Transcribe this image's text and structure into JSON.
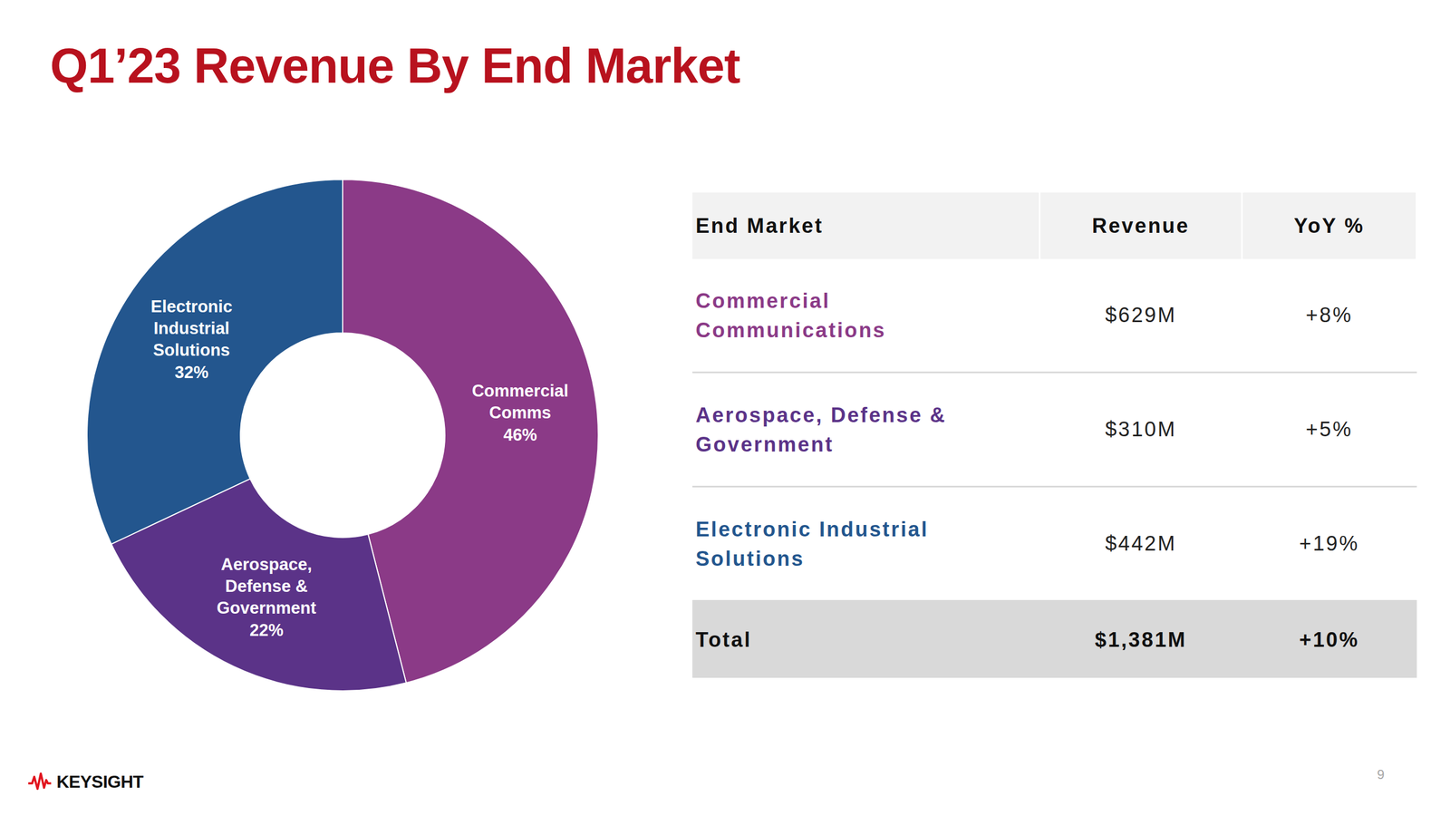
{
  "chart_data": {
    "type": "pie",
    "title": "Q1’23 Revenue By End Market",
    "categories": [
      "Commercial Comms",
      "Aerospace, Defense & Government",
      "Electronic Industrial Solutions"
    ],
    "values": [
      46,
      22,
      32
    ],
    "value_labels": [
      "46%",
      "22%",
      "32%"
    ],
    "colors": [
      "#8B3A87",
      "#5B3388",
      "#23568E"
    ],
    "data_labels": true
  },
  "table": {
    "header": [
      "End Market",
      "Revenue",
      "YoY %"
    ],
    "rows": [
      [
        "Commercial Communications",
        "$629M",
        "+8%"
      ],
      [
        "Aerospace, Defense & Government",
        "$310M",
        "+5%"
      ],
      [
        "Electronic Industrial Solutions",
        "$442M",
        "+19%"
      ]
    ],
    "total": [
      "Total",
      "$1,381M",
      "+10%"
    ]
  },
  "footer": {
    "logo": "KEYSIGHT",
    "page": "9"
  }
}
